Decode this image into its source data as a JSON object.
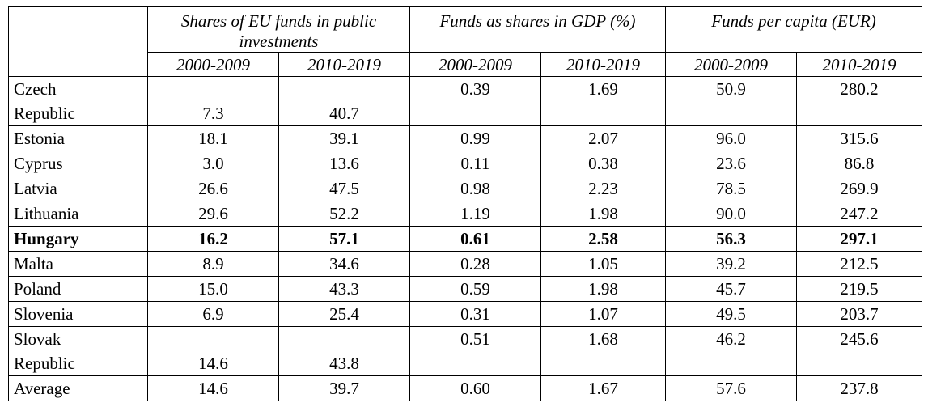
{
  "table": {
    "groups": [
      "Shares of EU funds in public investments",
      "Funds as shares in GDP (%)",
      "Funds per capita (EUR)"
    ],
    "periods": [
      "2000-2009",
      "2010-2019",
      "2000-2009",
      "2010-2019",
      "2000-2009",
      "2010-2019"
    ],
    "rows": [
      {
        "line1": "Czech",
        "line2": "Republic",
        "values": [
          "7.3",
          "40.7",
          "0.39",
          "1.69",
          "50.9",
          "280.2"
        ]
      },
      {
        "country": "Estonia",
        "values": [
          "18.1",
          "39.1",
          "0.99",
          "2.07",
          "96.0",
          "315.6"
        ]
      },
      {
        "country": "Cyprus",
        "values": [
          "3.0",
          "13.6",
          "0.11",
          "0.38",
          "23.6",
          "86.8"
        ]
      },
      {
        "country": "Latvia",
        "values": [
          "26.6",
          "47.5",
          "0.98",
          "2.23",
          "78.5",
          "269.9"
        ]
      },
      {
        "country": "Lithuania",
        "values": [
          "29.6",
          "52.2",
          "1.19",
          "1.98",
          "90.0",
          "247.2"
        ]
      },
      {
        "country": "Hungary",
        "values": [
          "16.2",
          "57.1",
          "0.61",
          "2.58",
          "56.3",
          "297.1"
        ]
      },
      {
        "country": "Malta",
        "values": [
          "8.9",
          "34.6",
          "0.28",
          "1.05",
          "39.2",
          "212.5"
        ]
      },
      {
        "country": "Poland",
        "values": [
          "15.0",
          "43.3",
          "0.59",
          "1.98",
          "45.7",
          "219.5"
        ]
      },
      {
        "country": "Slovenia",
        "values": [
          "6.9",
          "25.4",
          "0.31",
          "1.07",
          "49.5",
          "203.7"
        ]
      },
      {
        "line1": "Slovak",
        "line2": "Republic",
        "values": [
          "14.6",
          "43.8",
          "0.51",
          "1.68",
          "46.2",
          "245.6"
        ]
      },
      {
        "country": "Average",
        "values": [
          "14.6",
          "39.7",
          "0.60",
          "1.67",
          "57.6",
          "237.8"
        ]
      }
    ]
  }
}
